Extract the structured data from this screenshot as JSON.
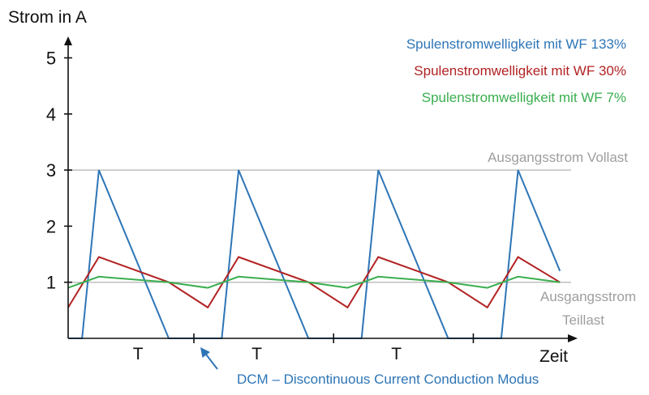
{
  "colors": {
    "blue": "#2e75b6",
    "red": "#b22222",
    "green": "#3aae4f",
    "reference": "#bfbfbf",
    "reference_text": "#9e9e9e",
    "axis": "#111111"
  },
  "chart_data": {
    "type": "line",
    "ylabel": "Strom in A",
    "xlabel": "Zeit",
    "ylim": [
      0,
      5.5
    ],
    "yticks": [
      1,
      2,
      3,
      4,
      5
    ],
    "ytick_labels": [
      "1",
      "2",
      "3",
      "4",
      "5"
    ],
    "xlim": [
      0,
      3.6
    ],
    "period_labels": [
      "T",
      "T",
      "T"
    ],
    "period_boundaries": [
      0.9,
      1.9,
      2.9
    ],
    "legend_position": "top-right",
    "reference_lines": [
      {
        "label": "Ausgangsstrom Vollast",
        "y": 3
      },
      {
        "label": "Ausgangsstrom Teillast",
        "label_lines": [
          "Ausgangsstrom",
          "Teillast"
        ],
        "y": 1
      }
    ],
    "series": [
      {
        "name": "Spulenstromwelligkeit mit WF 133%",
        "color": "#2e75b6",
        "x": [
          0.0,
          0.1,
          0.22,
          0.72,
          0.9,
          1.0,
          1.1,
          1.22,
          1.72,
          1.9,
          2.0,
          2.1,
          2.22,
          2.72,
          2.9,
          3.0,
          3.1,
          3.22,
          3.52
        ],
        "y": [
          0,
          0,
          3,
          0,
          0,
          0,
          0,
          3,
          0,
          0,
          0,
          0,
          3,
          0,
          0,
          0,
          0,
          3,
          1.2
        ]
      },
      {
        "name": "Spulenstromwelligkeit mit WF 30%",
        "color": "#b22222",
        "x": [
          0.0,
          0.22,
          0.72,
          1.0,
          1.22,
          1.72,
          2.0,
          2.22,
          2.72,
          3.0,
          3.22,
          3.52
        ],
        "y": [
          0.55,
          1.45,
          1.0,
          0.55,
          1.45,
          1.0,
          0.55,
          1.45,
          1.0,
          0.55,
          1.45,
          1.0
        ]
      },
      {
        "name": "Spulenstromwelligkeit mit WF 7%",
        "color": "#3aae4f",
        "x": [
          0.0,
          0.22,
          0.72,
          1.0,
          1.22,
          1.72,
          2.0,
          2.22,
          2.72,
          3.0,
          3.22,
          3.52
        ],
        "y": [
          0.9,
          1.1,
          1.0,
          0.9,
          1.1,
          1.0,
          0.9,
          1.1,
          1.0,
          0.9,
          1.1,
          1.0
        ]
      }
    ],
    "annotation": {
      "text": "DCM – Discontinuous Current Conduction Modus",
      "color": "#2e75b6",
      "points_to": {
        "x": 0.9,
        "y": 0
      }
    }
  }
}
